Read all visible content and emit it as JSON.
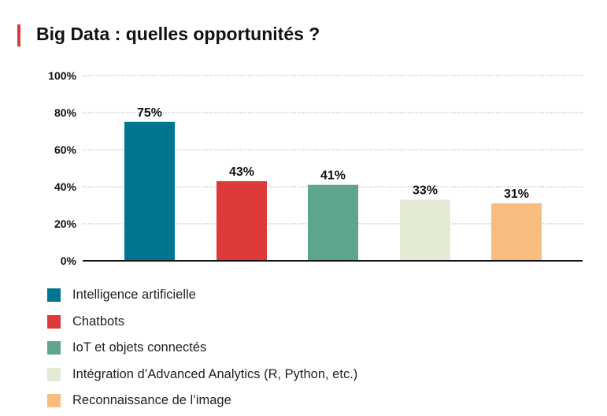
{
  "title": "Big Data : quelles opportunités ?",
  "chart_data": {
    "type": "bar",
    "title": "Big Data : quelles opportunités ?",
    "xlabel": "",
    "ylabel": "",
    "ylim": [
      0,
      100
    ],
    "yticks": [
      "0%",
      "20%",
      "40%",
      "60%",
      "80%",
      "100%"
    ],
    "ytick_values": [
      0,
      20,
      40,
      60,
      80,
      100
    ],
    "grid": true,
    "legend_position": "bottom",
    "categories": [
      "Intelligence artificielle",
      "Chatbots",
      "IoT et objets connectés",
      "Intégration d’Advanced Analytics (R, Python, etc.)",
      "Reconnaissance de l’image"
    ],
    "values": [
      75,
      43,
      41,
      33,
      31
    ],
    "data_labels": [
      "75%",
      "43%",
      "41%",
      "33%",
      "31%"
    ],
    "colors": [
      "#00758f",
      "#dc3b3a",
      "#5fa58c",
      "#e4ebd4",
      "#f7bd7e"
    ]
  }
}
